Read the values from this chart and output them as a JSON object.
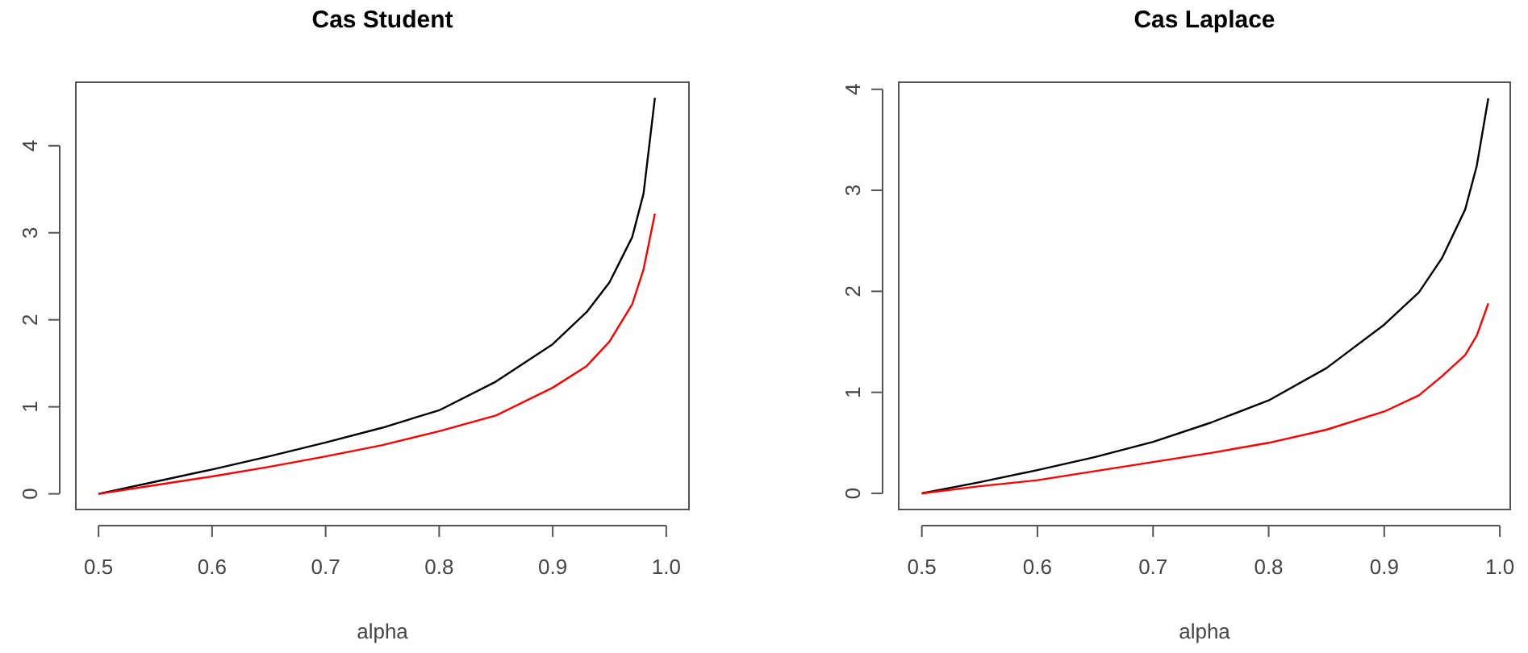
{
  "chart_data": [
    {
      "type": "line",
      "title": "Cas Student",
      "xlabel": "alpha",
      "x": [
        0.5,
        0.55,
        0.6,
        0.65,
        0.7,
        0.75,
        0.8,
        0.85,
        0.9,
        0.93,
        0.95,
        0.97,
        0.98,
        0.99
      ],
      "series": [
        {
          "color": "#000000",
          "values": [
            0,
            0.14,
            0.28,
            0.43,
            0.59,
            0.76,
            0.96,
            1.29,
            1.72,
            2.09,
            2.43,
            2.95,
            3.45,
            4.55
          ]
        },
        {
          "color": "#ff0000",
          "values": [
            0,
            0.1,
            0.2,
            0.31,
            0.43,
            0.56,
            0.72,
            0.9,
            1.22,
            1.47,
            1.75,
            2.18,
            2.58,
            3.22
          ]
        }
      ],
      "xlim": [
        0.48,
        1.02
      ],
      "ylim": [
        -0.18,
        4.73
      ],
      "xticks": [
        0.5,
        0.6,
        0.7,
        0.8,
        0.9,
        {
          "value": 1,
          "label": "1.0"
        }
      ],
      "yticks": [
        0,
        1,
        2,
        3,
        4
      ]
    },
    {
      "type": "line",
      "title": "Cas Laplace",
      "xlabel": "alpha",
      "x": [
        0.5,
        0.55,
        0.6,
        0.65,
        0.7,
        0.75,
        0.8,
        0.85,
        0.9,
        0.93,
        0.95,
        0.97,
        0.98,
        0.99
      ],
      "series": [
        {
          "color": "#000000",
          "values": [
            0,
            0.11,
            0.23,
            0.36,
            0.51,
            0.7,
            0.92,
            1.24,
            1.67,
            1.99,
            2.33,
            2.81,
            3.24,
            3.91
          ]
        },
        {
          "color": "#ff0000",
          "values": [
            0,
            0.07,
            0.13,
            0.22,
            0.31,
            0.4,
            0.5,
            0.63,
            0.81,
            0.97,
            1.16,
            1.37,
            1.56,
            1.88
          ]
        }
      ],
      "xlim": [
        0.48,
        1.009
      ],
      "ylim": [
        -0.16,
        4.07
      ],
      "xticks": [
        0.5,
        0.6,
        0.7,
        0.8,
        0.9,
        {
          "value": 1,
          "label": "1.0"
        }
      ],
      "yticks": [
        0,
        1,
        2,
        3,
        4
      ]
    }
  ]
}
